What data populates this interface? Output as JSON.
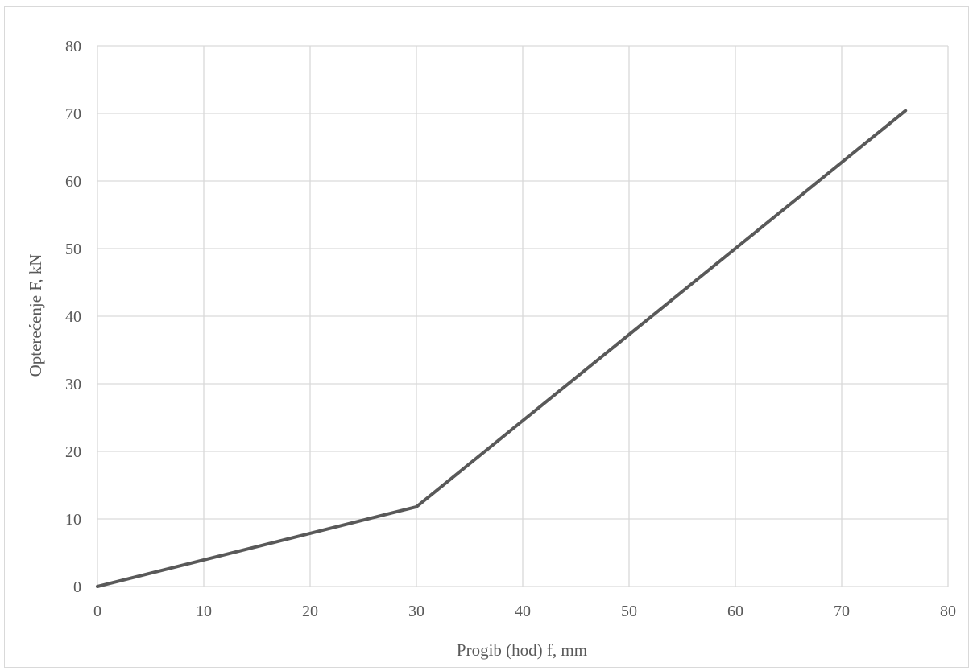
{
  "chart_data": {
    "type": "line",
    "title": "",
    "xlabel": "Progib (hod) f, mm",
    "ylabel": "Opterećenje F, kN",
    "xlim": [
      0,
      80
    ],
    "ylim": [
      0,
      80
    ],
    "xticks": [
      0,
      10,
      20,
      30,
      40,
      50,
      60,
      70,
      80
    ],
    "yticks": [
      0,
      10,
      20,
      30,
      40,
      50,
      60,
      70,
      80
    ],
    "grid": true,
    "legend": "none",
    "series": [
      {
        "x": [
          0,
          30,
          76
        ],
        "y": [
          0,
          11.8,
          70.4
        ],
        "color": "#595959"
      }
    ]
  }
}
